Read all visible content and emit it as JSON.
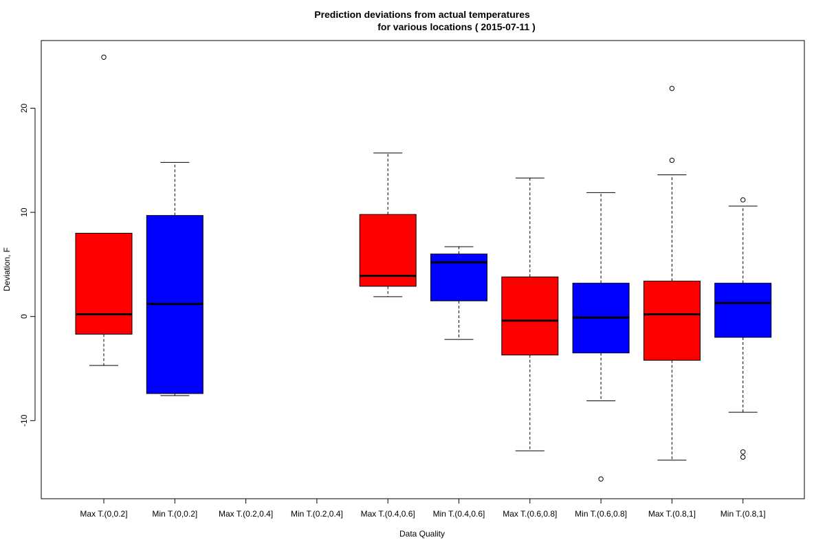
{
  "chart_data": {
    "type": "boxplot",
    "title_lines": [
      "Prediction deviations from actual temperatures",
      "for various locations ( 2015-07-11 )"
    ],
    "xlabel": "Data Quality",
    "ylabel": "Deviation, F",
    "ylim": [
      -17.5,
      26.5
    ],
    "yticks": [
      -10,
      0,
      10,
      20
    ],
    "colors": {
      "max": "#ff0000",
      "min": "#0000ff",
      "median": "#000000",
      "outlier": "#000000"
    },
    "categories": [
      {
        "label": "Max T.(0,0.2]",
        "group": "max",
        "box": {
          "wlo": -4.7,
          "q1": -1.7,
          "med": 0.2,
          "q3": 8.0,
          "whi": 8.0
        },
        "outliers": [
          24.9
        ]
      },
      {
        "label": "Min T.(0,0.2]",
        "group": "min",
        "box": {
          "wlo": -7.6,
          "q1": -7.4,
          "med": 1.2,
          "q3": 9.7,
          "whi": 14.8
        },
        "outliers": []
      },
      {
        "label": "Max T.(0.2,0.4]",
        "group": "max",
        "box": null,
        "outliers": []
      },
      {
        "label": "Min T.(0.2,0.4]",
        "group": "min",
        "box": null,
        "outliers": []
      },
      {
        "label": "Max T.(0.4,0.6]",
        "group": "max",
        "box": {
          "wlo": 1.9,
          "q1": 2.9,
          "med": 3.9,
          "q3": 9.8,
          "whi": 15.7
        },
        "outliers": []
      },
      {
        "label": "Min T.(0.4,0.6]",
        "group": "min",
        "box": {
          "wlo": -2.2,
          "q1": 1.5,
          "med": 5.2,
          "q3": 6.0,
          "whi": 6.7
        },
        "outliers": []
      },
      {
        "label": "Max T.(0.6,0.8]",
        "group": "max",
        "box": {
          "wlo": -12.9,
          "q1": -3.7,
          "med": -0.4,
          "q3": 3.8,
          "whi": 13.3
        },
        "outliers": []
      },
      {
        "label": "Min T.(0.6,0.8]",
        "group": "min",
        "box": {
          "wlo": -8.1,
          "q1": -3.5,
          "med": -0.1,
          "q3": 3.2,
          "whi": 11.9
        },
        "outliers": [
          -15.6
        ]
      },
      {
        "label": "Max T.(0.8,1]",
        "group": "max",
        "box": {
          "wlo": -13.8,
          "q1": -4.2,
          "med": 0.2,
          "q3": 3.4,
          "whi": 13.6
        },
        "outliers": [
          21.9,
          15.0
        ]
      },
      {
        "label": "Min T.(0.8,1]",
        "group": "min",
        "box": {
          "wlo": -9.2,
          "q1": -2.0,
          "med": 1.3,
          "q3": 3.2,
          "whi": 10.6
        },
        "outliers": [
          11.2,
          -13.0,
          -13.5
        ]
      }
    ]
  }
}
